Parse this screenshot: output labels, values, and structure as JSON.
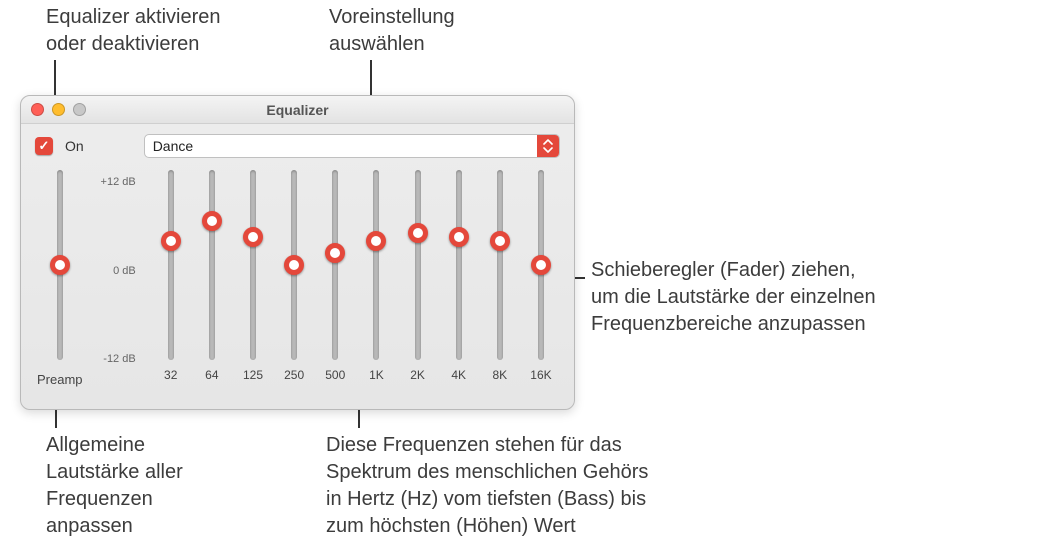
{
  "colors": {
    "accent": "#e4483b",
    "traffic_close": "#ff5f57",
    "traffic_min": "#ffbd2e",
    "traffic_zoom": "#c8c8c8",
    "window_bg_top": "#ededed",
    "window_bg_bottom": "#e6e6e6",
    "text": "#3c3c3c"
  },
  "window": {
    "title": "Equalizer",
    "on_checked": true,
    "on_label": "On",
    "preset_selected": "Dance"
  },
  "scale": {
    "max_label": "+12 dB",
    "mid_label": "0 dB",
    "min_label": "-12 dB",
    "min": -12,
    "max": 12
  },
  "preamp": {
    "label": "Preamp",
    "value": 0
  },
  "bands": [
    {
      "freq": "32",
      "value": 3.0
    },
    {
      "freq": "64",
      "value": 5.5
    },
    {
      "freq": "125",
      "value": 3.5
    },
    {
      "freq": "250",
      "value": 0.0
    },
    {
      "freq": "500",
      "value": 1.5
    },
    {
      "freq": "1K",
      "value": 3.0
    },
    {
      "freq": "2K",
      "value": 4.0
    },
    {
      "freq": "4K",
      "value": 3.5
    },
    {
      "freq": "8K",
      "value": 3.0
    },
    {
      "freq": "16K",
      "value": 0.0
    }
  ],
  "callouts": {
    "enable": "Equalizer aktivieren\noder deaktivieren",
    "preset": "Voreinstellung\nauswählen",
    "fader": "Schieberegler (Fader) ziehen,\num die Lautstärke der einzelnen\nFrequenzbereiche anzupassen",
    "preamp_note": "Allgemeine\nLautstärke aller\nFrequenzen\nanpassen",
    "freq_note": "Diese Frequenzen stehen für das\nSpektrum des menschlichen Gehörs\nin Hertz (Hz) vom tiefsten (Bass) bis\nzum höchsten (Höhen) Wert"
  }
}
